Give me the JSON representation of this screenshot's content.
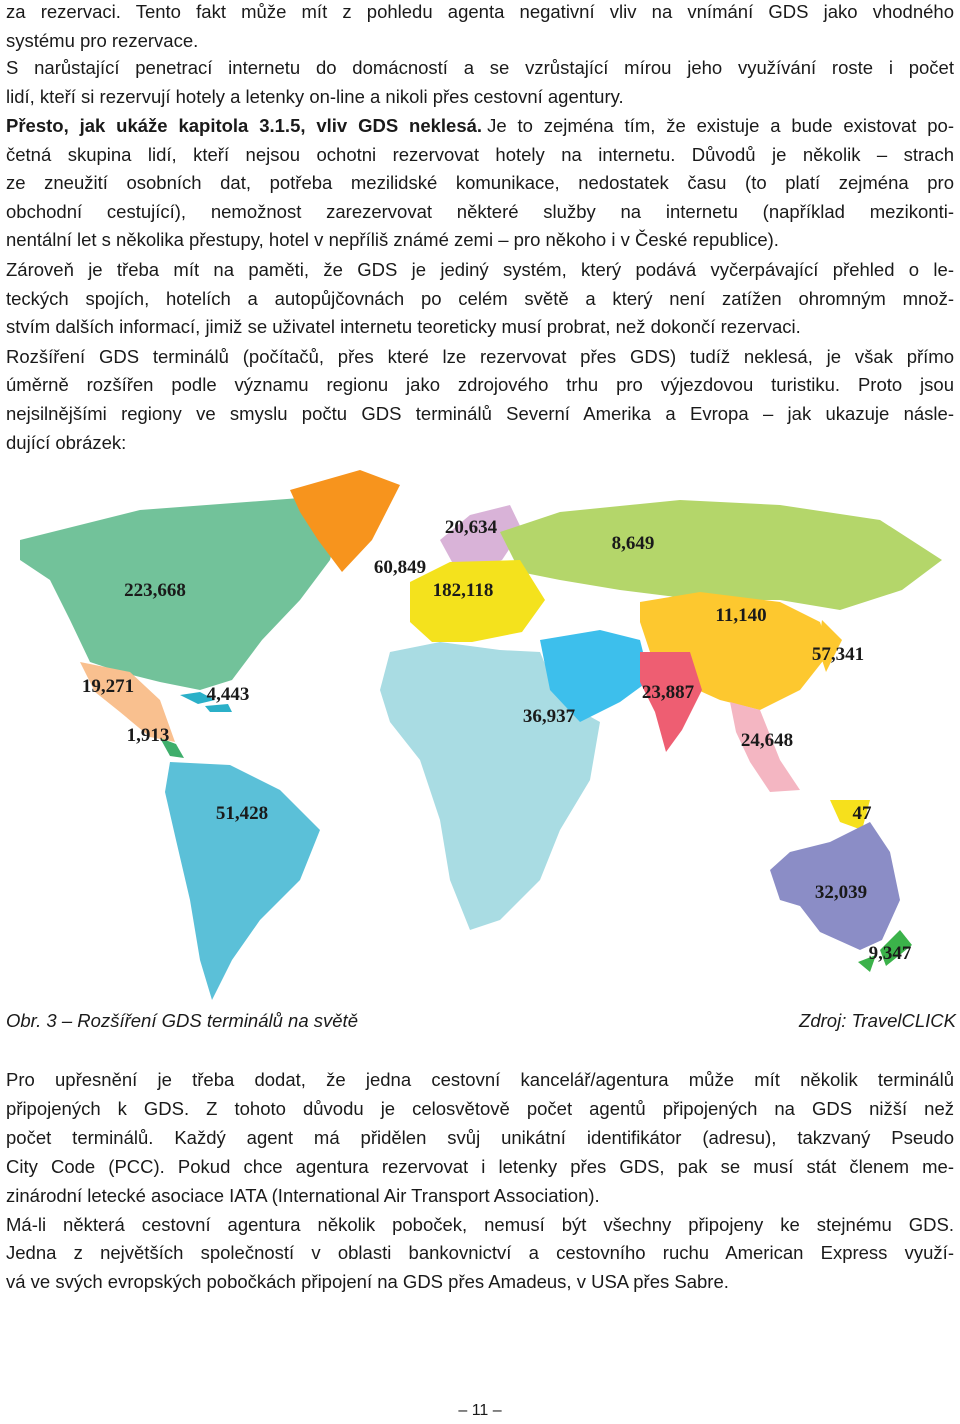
{
  "text_top": {
    "lines": [
      "za rezervaci. Tento fakt může mít z pohledu agenta negativní vliv na vnímání GDS jako vhodného",
      "systému pro rezervace.",
      "S narůstající penetrací internetu do domácností a se vzrůstající mírou jeho využívání roste i počet",
      "lidí, kteří si rezervují hotely a letenky on-line a nikoli přes cestovní agentury.",
      "Je to zejména tím, že existuje a bude existovat po-",
      "četná skupina lidí, kteří nejsou ochotni rezervovat hotely na internetu. Důvodů je několik – strach",
      "ze zneužití osobních dat, potřeba mezilidské komunikace, nedostatek času (to platí zejména pro",
      "obchodní cestující), nemožnost zarezervovat některé služby na internetu (například mezikonti-",
      "nentální let s několika přestupy, hotel v nepříliš známé zemi – pro někoho i v České republice).",
      "Zároveň je třeba mít na paměti, že GDS je jediný systém, který podává vyčerpávající přehled o le-",
      "teckých spojích, hotelích a autopůjčovnách po celém světě a který není zatížen ohromným množ-",
      "stvím dalších informací, jimiž se uživatel internetu teoreticky musí probrat, než dokončí rezervaci.",
      "Rozšíření GDS terminálů (počítačů, přes které lze rezervovat přes GDS) tudíž neklesá, je však přímo",
      "úměrně rozšířen podle významu regionu jako zdrojového trhu pro výjezdovou turistiku. Proto jsou",
      "nejsilnějšími regiony ve smyslu počtu GDS terminálů Severní Amerika a Evropa – jak ukazuje násle-",
      "dující obrázek:"
    ],
    "lead": "Přesto, jak ukáže kapitola 3.1.5, vliv GDS neklesá."
  },
  "map": {
    "labels": [
      "20,634",
      "8,649",
      "60,849",
      "223,668",
      "182,118",
      "11,140",
      "57,341",
      "19,271",
      "4,443",
      "23,887",
      "36,937",
      "1,913",
      "24,648",
      "51,428",
      "47",
      "32,039",
      "9,347"
    ]
  },
  "figure": {
    "caption": "Obr. 3 – Rozšíření GDS terminálů na světě",
    "source": "Zdroj: TravelCLICK"
  },
  "text_bottom": {
    "lines": [
      "Pro upřesnění je třeba dodat, že jedna cestovní kancelář/agentura může mít několik terminálů",
      "připojených k GDS. Z tohoto důvodu je celosvětově počet agentů připojených na GDS nižší než",
      "počet terminálů. Každý agent má přidělen svůj unikátní identifikátor (adresu), takzvaný Pseudo",
      "City Code (PCC). Pokud chce agentura rezervovat i letenky přes GDS, pak se musí stát členem me-",
      "zinárodní letecké asociace IATA (International Air Transport Association).",
      "Má-li některá cestovní agentura několik poboček, nemusí být všechny připojeny ke stejnému GDS.",
      "Jedna z největších společností v oblasti bankovnictví a cestovního ruchu American Express využí-",
      "vá ve svých evropských pobočkách připojení na GDS přes Amadeus, v USA přes Sabre."
    ]
  },
  "page_number": "– 11 –"
}
